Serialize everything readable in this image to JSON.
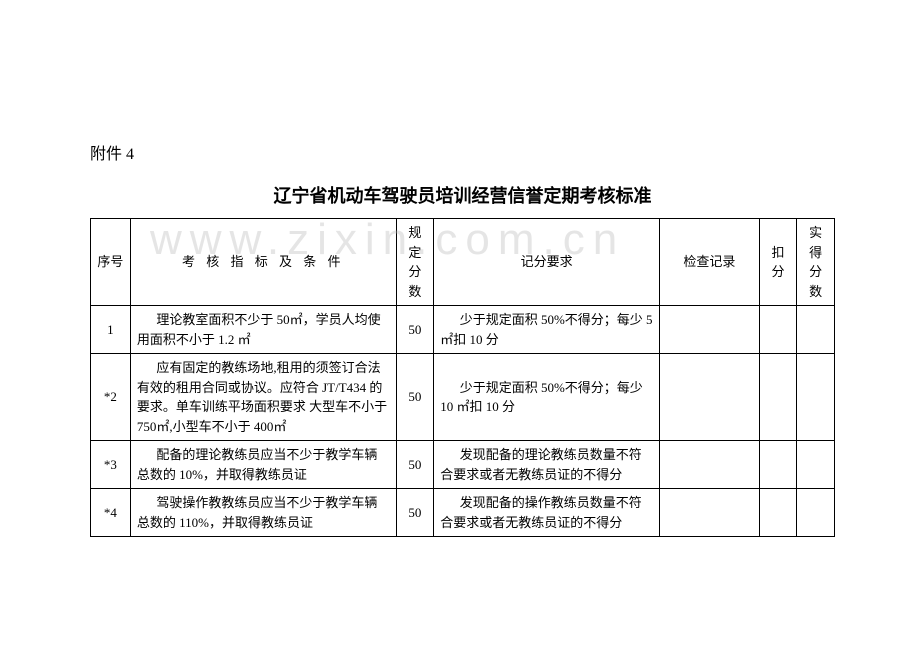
{
  "attachment_label": "附件 4",
  "title": "辽宁省机动车驾驶员培训经营信誉定期考核标准",
  "watermark": "www.zixin.com.cn",
  "headers": {
    "seq": "序号",
    "condition": "考 核 指 标  及 条 件",
    "score": "规定分数",
    "requirement": "记分要求",
    "check": "检查记录",
    "deduct": "扣分",
    "actual": "实得分数"
  },
  "rows": [
    {
      "seq": "1",
      "condition": "理论教室面积不少于 50㎡，学员人均使用面积不小于 1.2 ㎡",
      "score": "50",
      "requirement": "少于规定面积 50%不得分；每少 5 ㎡扣 10 分",
      "check": "",
      "deduct": "",
      "actual": ""
    },
    {
      "seq": "*2",
      "condition": "应有固定的教练场地,租用的须签订合法有效的租用合同或协议。应符合 JT/T434 的要求。单车训练平场面积要求 大型车不小于 750㎡,小型车不小于 400㎡",
      "score": "50",
      "requirement": "少于规定面积 50%不得分；每少 10 ㎡扣 10 分",
      "check": "",
      "deduct": "",
      "actual": ""
    },
    {
      "seq": "*3",
      "condition": "配备的理论教练员应当不少于教学车辆总数的 10%，并取得教练员证",
      "score": "50",
      "requirement": "发现配备的理论教练员数量不符合要求或者无教练员证的不得分",
      "check": "",
      "deduct": "",
      "actual": ""
    },
    {
      "seq": "*4",
      "condition": "驾驶操作教教练员应当不少于教学车辆总数的 110%，并取得教练员证",
      "score": "50",
      "requirement": "发现配备的操作教练员数量不符合要求或者无教练员证的不得分",
      "check": "",
      "deduct": "",
      "actual": ""
    }
  ]
}
